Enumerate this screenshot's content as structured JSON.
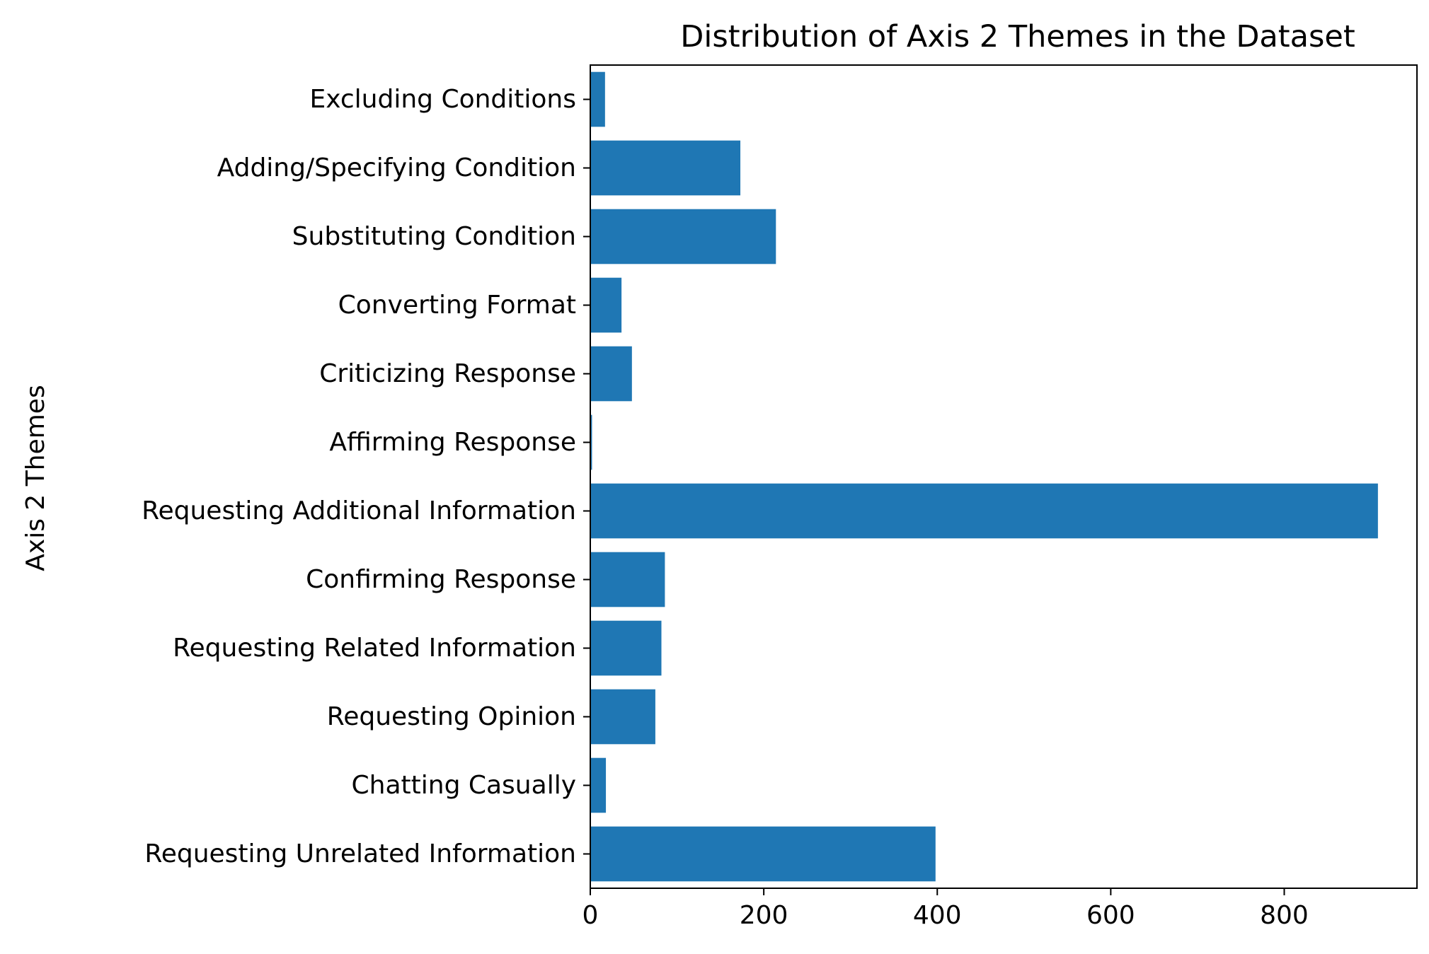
{
  "chart_data": {
    "type": "bar",
    "orientation": "horizontal",
    "title": "Distribution of Axis 2 Themes in the Dataset",
    "xlabel": "",
    "ylabel": "Axis 2 Themes",
    "categories": [
      "Requesting Unrelated Information",
      "Chatting Casually",
      "Requesting Opinion",
      "Requesting Related Information",
      "Confirming Response",
      "Requesting Additional Information",
      "Affirming Response",
      "Criticizing Response",
      "Converting Format",
      "Substituting Condition",
      "Adding/Specifying Condition",
      "Excluding Conditions"
    ],
    "values": [
      398,
      18,
      75,
      82,
      86,
      908,
      2,
      48,
      36,
      214,
      173,
      17
    ],
    "xlim": [
      0,
      953
    ],
    "xticks": [
      0,
      200,
      400,
      600,
      800
    ],
    "grid": false,
    "legend": "none",
    "bar_color": "#1f77b4"
  }
}
